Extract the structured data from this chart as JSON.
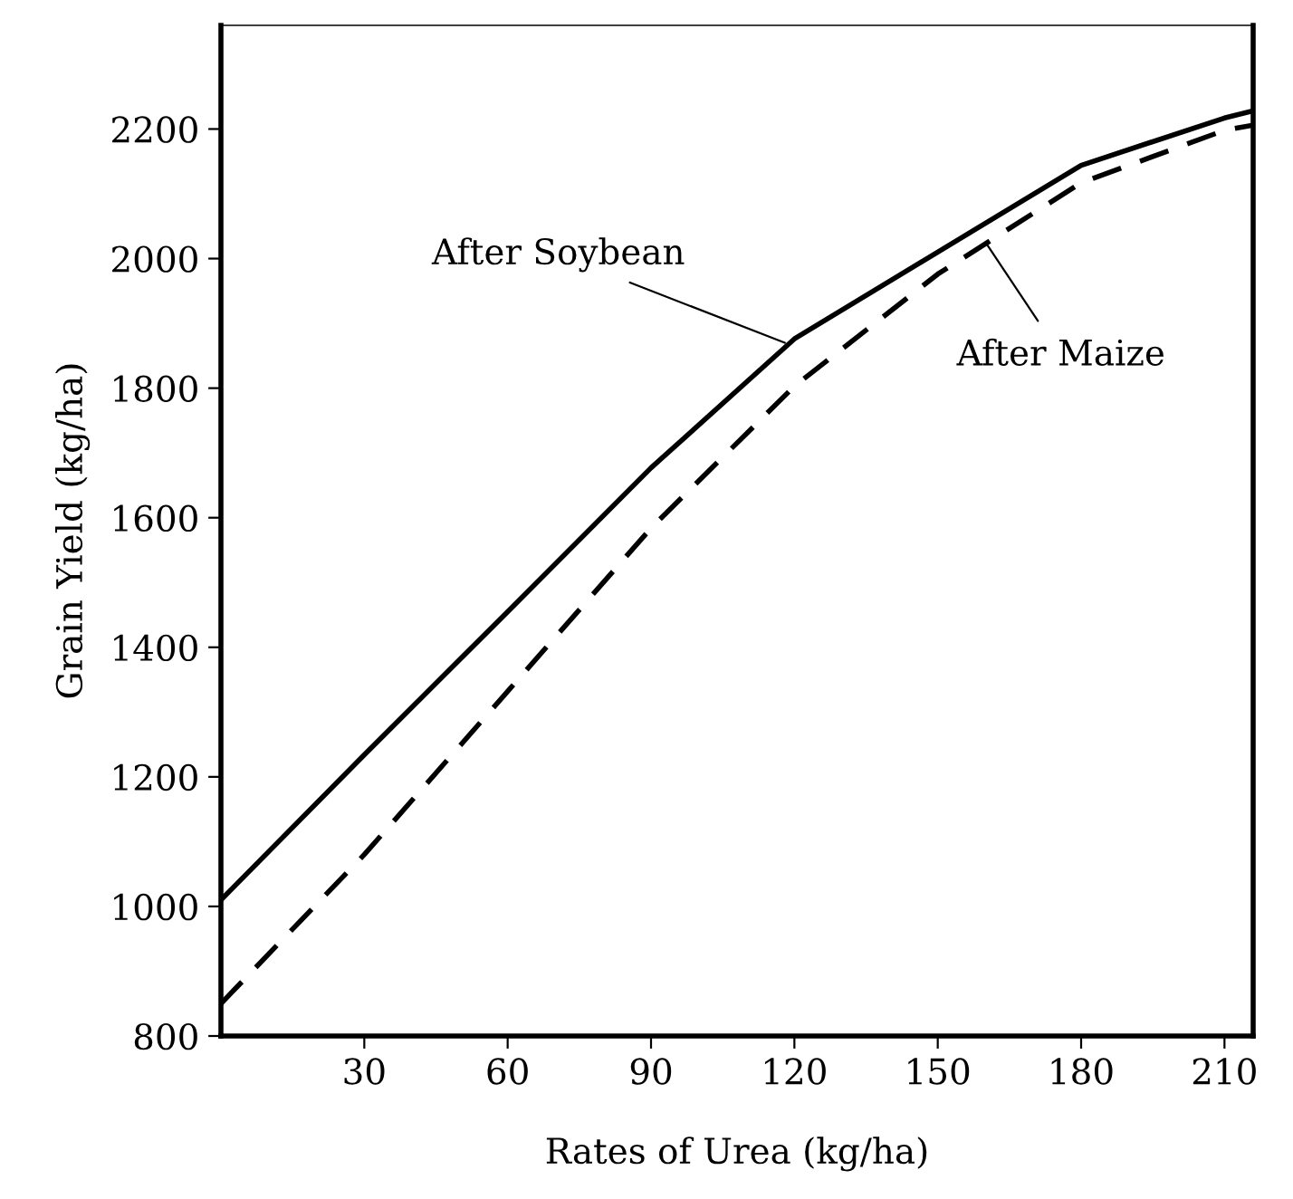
{
  "chart_data": {
    "type": "line",
    "xlabel": "Rates of Urea (kg/ha)",
    "ylabel": "Grain Yield (kg/ha)",
    "xlim": [
      0,
      216
    ],
    "ylim": [
      800,
      2360
    ],
    "xticks": [
      30,
      60,
      90,
      120,
      150,
      180,
      210
    ],
    "yticks": [
      800,
      1000,
      1200,
      1400,
      1600,
      1800,
      2000,
      2200
    ],
    "grid": false,
    "legend": false,
    "series": [
      {
        "color": "#000000",
        "line_style": "solid",
        "x": [
          0,
          30,
          60,
          90,
          120,
          150,
          180,
          210,
          216
        ],
        "values": [
          1010,
          1234,
          1455,
          1677,
          1876,
          2010,
          2144,
          2217,
          2228
        ]
      },
      {
        "color": "#000000",
        "line_style": "dashed",
        "x": [
          0,
          30,
          60,
          90,
          120,
          150,
          180,
          210,
          216
        ],
        "values": [
          850,
          1080,
          1332,
          1584,
          1803,
          1976,
          2117,
          2198,
          2206
        ]
      }
    ],
    "annotations": [
      {
        "text": "After Soybean",
        "x": 118,
        "y": 1870
      },
      {
        "text": "After Maize",
        "x": 160,
        "y": 2025
      }
    ]
  }
}
